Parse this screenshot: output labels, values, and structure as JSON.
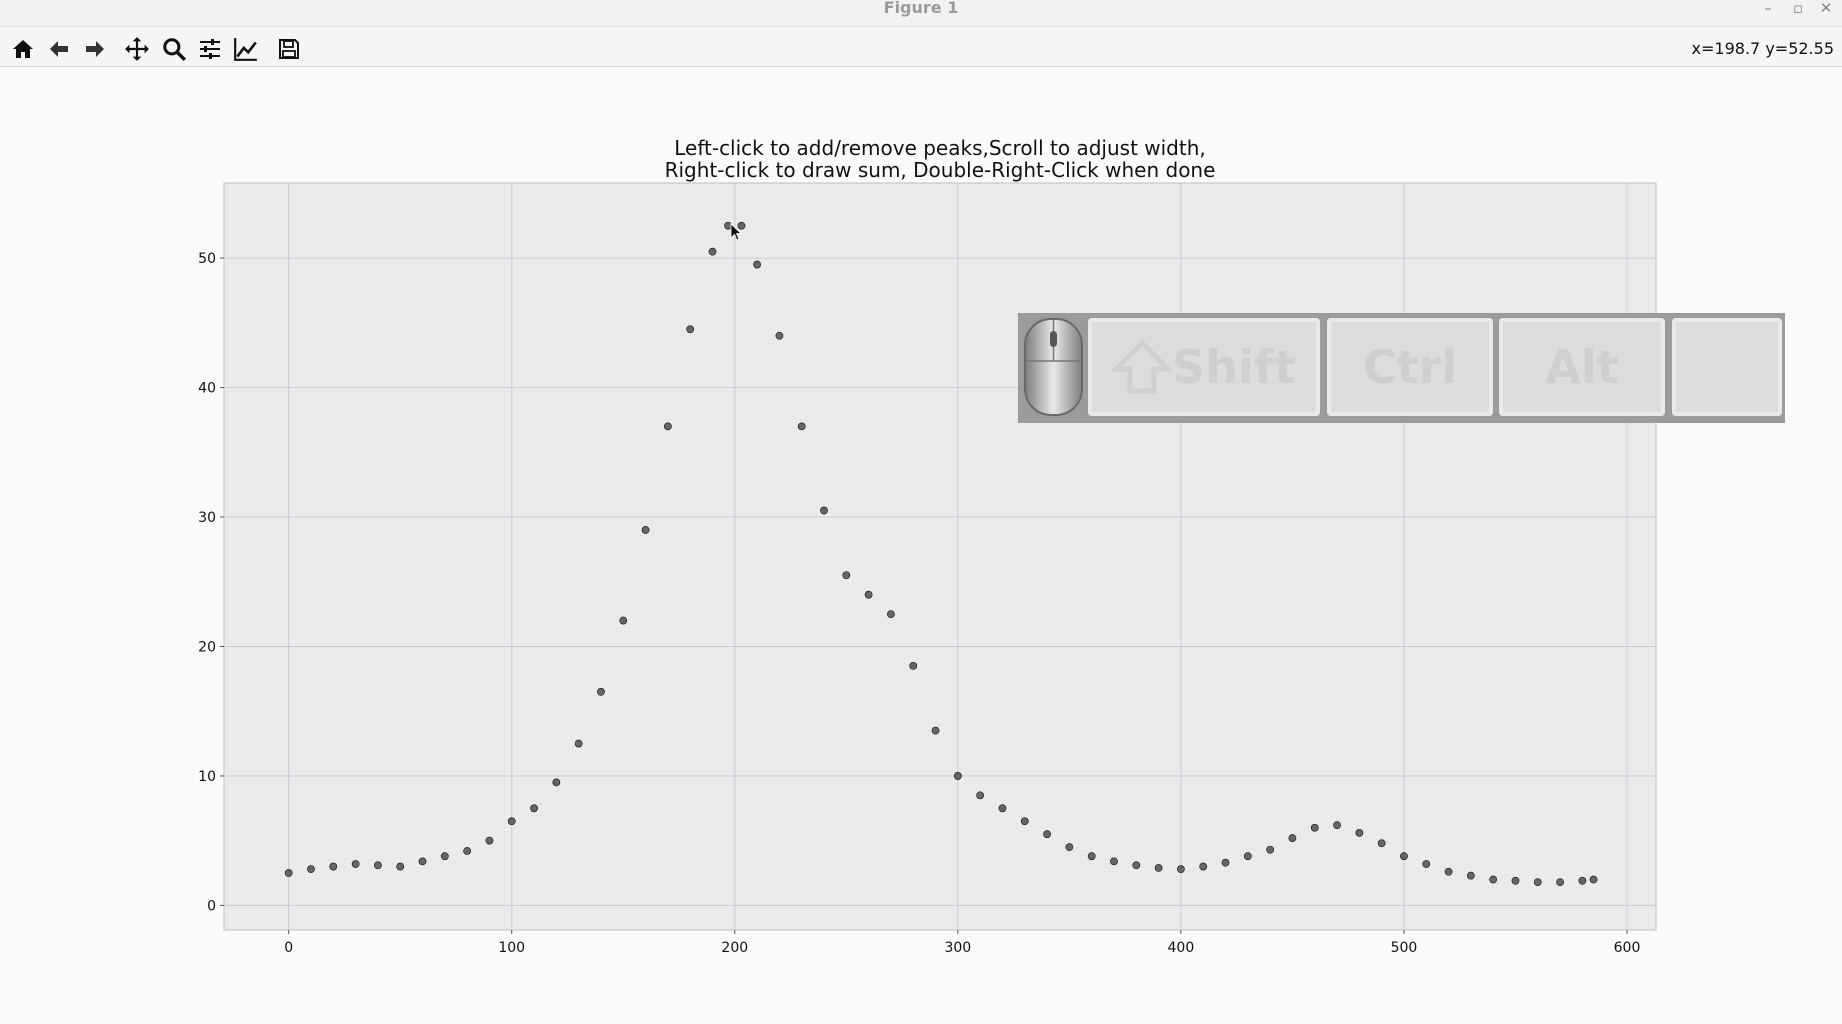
{
  "window": {
    "title": "Figure 1",
    "minimize": "–",
    "maximize": "▫",
    "close": "✕"
  },
  "toolbar": {
    "tools": [
      {
        "name": "home-icon"
      },
      {
        "name": "back-icon"
      },
      {
        "name": "forward-icon"
      },
      {
        "name": "pan-icon"
      },
      {
        "name": "zoom-icon"
      },
      {
        "name": "subplots-icon"
      },
      {
        "name": "edit-axis-icon"
      },
      {
        "name": "save-icon"
      }
    ],
    "coords": "x=198.7 y=52.55"
  },
  "plot": {
    "title_line1": "Left-click to add/remove peaks,Scroll to adjust width,",
    "title_line2": "Right-click to draw sum, Double-Right-Click when done"
  },
  "key_overlay": {
    "keys": [
      {
        "name": "shift-key",
        "label": "Shift"
      },
      {
        "name": "ctrl-key",
        "label": "Ctrl"
      },
      {
        "name": "alt-key",
        "label": "Alt"
      },
      {
        "name": "extra-key",
        "label": ""
      }
    ]
  },
  "chart_data": {
    "type": "scatter",
    "title": "Left-click to add/remove peaks,Scroll to adjust width, Right-click to draw sum, Double-Right-Click when done",
    "xlabel": "",
    "ylabel": "",
    "xlim": [
      -29,
      613
    ],
    "ylim": [
      -1.9,
      55.8
    ],
    "xticks": [
      0,
      100,
      200,
      300,
      400,
      500,
      600
    ],
    "yticks": [
      0,
      10,
      20,
      30,
      40,
      50
    ],
    "grid": true,
    "marker_color": "#3a3a3a",
    "x": [
      0,
      10,
      20,
      30,
      40,
      50,
      60,
      70,
      80,
      90,
      100,
      110,
      120,
      130,
      140,
      150,
      160,
      170,
      180,
      190,
      197,
      203,
      210,
      220,
      230,
      240,
      250,
      260,
      270,
      280,
      290,
      300,
      310,
      320,
      330,
      340,
      350,
      360,
      370,
      380,
      390,
      400,
      410,
      420,
      430,
      440,
      450,
      460,
      470,
      480,
      490,
      500,
      510,
      520,
      530,
      540,
      550,
      560,
      570,
      580,
      585
    ],
    "y": [
      2.5,
      2.8,
      3.0,
      3.2,
      3.1,
      3.0,
      3.4,
      3.8,
      4.2,
      5.0,
      6.5,
      7.5,
      9.5,
      12.5,
      16.5,
      22.0,
      29.0,
      37.0,
      44.5,
      50.5,
      52.5,
      52.5,
      49.5,
      44.0,
      37.0,
      30.5,
      25.5,
      24.0,
      22.5,
      18.5,
      13.5,
      10.0,
      8.5,
      7.5,
      6.5,
      5.5,
      4.5,
      3.8,
      3.4,
      3.1,
      2.9,
      2.8,
      3.0,
      3.3,
      3.8,
      4.3,
      5.2,
      6.0,
      6.2,
      5.6,
      4.8,
      3.8,
      3.2,
      2.6,
      2.3,
      2.0,
      1.9,
      1.8,
      1.8,
      1.9,
      2.0
    ]
  }
}
